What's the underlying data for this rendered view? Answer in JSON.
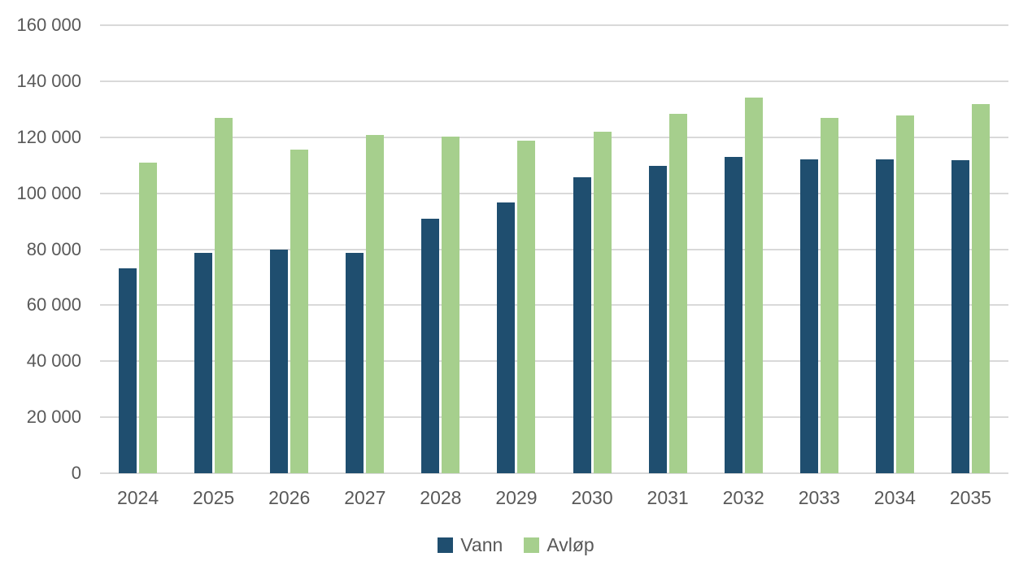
{
  "chart_data": {
    "type": "bar",
    "title": "",
    "xlabel": "",
    "ylabel": "",
    "categories": [
      "2024",
      "2025",
      "2026",
      "2027",
      "2028",
      "2029",
      "2030",
      "2031",
      "2032",
      "2033",
      "2034",
      "2035"
    ],
    "series": [
      {
        "name": "Vann",
        "color": "#1F4E6F",
        "values": [
          73300,
          78700,
          79900,
          78700,
          90900,
          96700,
          105600,
          109900,
          113100,
          112100,
          112200,
          111900
        ]
      },
      {
        "name": "Avløp",
        "color": "#A6CF8D",
        "values": [
          110900,
          126900,
          115700,
          120900,
          120200,
          118900,
          121900,
          128400,
          134200,
          127000,
          127700,
          131800
        ]
      }
    ],
    "ylim": [
      0,
      160000
    ],
    "ytick_step": 20000,
    "yticks": [
      {
        "value": 0,
        "label": "0"
      },
      {
        "value": 20000,
        "label": "20 000"
      },
      {
        "value": 40000,
        "label": "40 000"
      },
      {
        "value": 60000,
        "label": "60 000"
      },
      {
        "value": 80000,
        "label": "80 000"
      },
      {
        "value": 100000,
        "label": "100 000"
      },
      {
        "value": 120000,
        "label": "120 000"
      },
      {
        "value": 140000,
        "label": "140 000"
      },
      {
        "value": 160000,
        "label": "160 000"
      }
    ],
    "grid": true,
    "legend_position": "bottom",
    "colors": {
      "gridline": "#D9D9D9",
      "axis_text": "#595959",
      "background": "#FFFFFF"
    }
  }
}
